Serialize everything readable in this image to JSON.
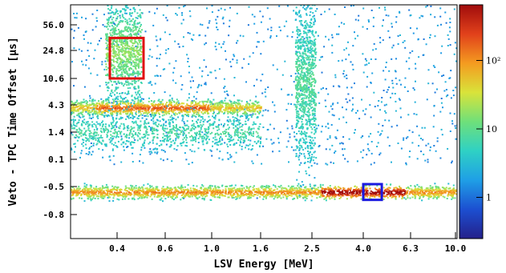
{
  "chart_data": {
    "type": "heatmap",
    "xlabel": "LSV Energy [MeV]",
    "ylabel": "Veto - TPC Time Offset [µs]",
    "x_ticks": [
      "0.4",
      "0.6",
      "1.0",
      "1.6",
      "2.5",
      "4.0",
      "6.3",
      "10.0"
    ],
    "y_ticks": [
      "56.0",
      "24.8",
      "10.6",
      "4.3",
      "1.4",
      "0.1",
      "-0.5",
      "-0.8"
    ],
    "colorbar_ticks": [
      "1",
      "10",
      "10²"
    ],
    "colorbar_range": [
      0.25,
      650
    ],
    "colormap": [
      "#24208a",
      "#1c4fd1",
      "#1f9fe6",
      "#2fd1c4",
      "#6fe07a",
      "#d9e33a",
      "#f49b20",
      "#e1411b",
      "#a00c0c"
    ],
    "bands": [
      {
        "x": [
          0.2,
          10.0
        ],
        "y": [
          -0.62,
          -0.48
        ],
        "level": 0.6
      },
      {
        "x": [
          0.2,
          1.6
        ],
        "y": [
          3.3,
          5.4
        ],
        "level": 0.5
      },
      {
        "x": [
          0.2,
          1.6
        ],
        "y": [
          0.6,
          3.3
        ],
        "level": 0.2
      },
      {
        "x": [
          0.35,
          0.5
        ],
        "y": [
          6.0,
          80.0
        ],
        "level": 0.32
      },
      {
        "x": [
          2.2,
          2.6
        ],
        "y": [
          0.1,
          80.0
        ],
        "level": 0.22
      }
    ],
    "boxes": [
      {
        "x": [
          0.37,
          0.51
        ],
        "y": [
          10.6,
          40.0
        ],
        "color": "#e01010"
      },
      {
        "x": [
          4.0,
          4.9
        ],
        "y": [
          -0.6,
          -0.5
        ],
        "color": "#1a1ae0"
      }
    ]
  }
}
